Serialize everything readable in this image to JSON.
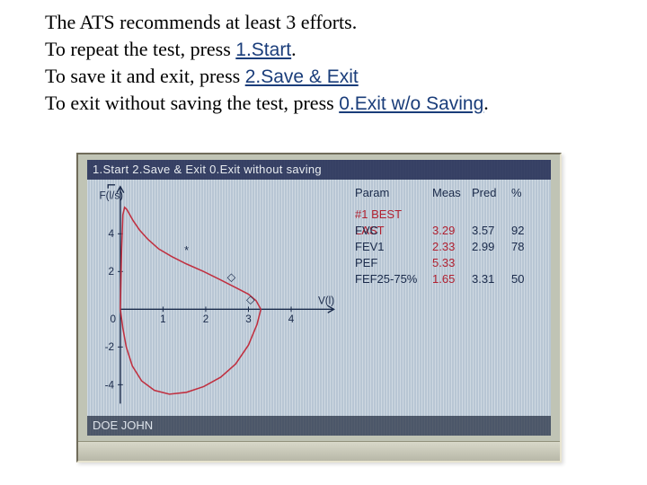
{
  "instructions": {
    "line1_pre": "The ATS recommends at least 3 efforts.",
    "line2_pre": "To repeat the test, press ",
    "line2_action": "1.Start",
    "line2_post": ".",
    "line3_pre": "To save it and exit, press ",
    "line3_action": "2.Save & Exit",
    "line4_pre": "To exit without saving the test, press ",
    "line4_action": "0.Exit w/o Saving",
    "line4_post": "."
  },
  "screen": {
    "title": "1.Start  2.Save & Exit  0.Exit without saving",
    "status": "DOE JOHN",
    "chart": {
      "type": "line",
      "xlabel": "V(l)",
      "ylabel": "F(l/s)",
      "xlim": [
        0,
        5
      ],
      "ylim": [
        -5,
        6.5
      ],
      "xticks": [
        0,
        1,
        2,
        3,
        4
      ],
      "yticks_pos": [
        2,
        4
      ],
      "yticks_neg": [
        -2,
        -4
      ],
      "axis_color": "#1a2a4a",
      "curve_color": "#c03040",
      "exp_curve": [
        [
          0.0,
          0.0
        ],
        [
          0.03,
          3.2
        ],
        [
          0.06,
          5.0
        ],
        [
          0.1,
          5.4
        ],
        [
          0.15,
          5.3
        ],
        [
          0.2,
          5.1
        ],
        [
          0.3,
          4.7
        ],
        [
          0.45,
          4.2
        ],
        [
          0.65,
          3.7
        ],
        [
          0.9,
          3.2
        ],
        [
          1.2,
          2.8
        ],
        [
          1.55,
          2.4
        ],
        [
          1.95,
          2.0
        ],
        [
          2.35,
          1.55
        ],
        [
          2.7,
          1.15
        ],
        [
          3.0,
          0.8
        ],
        [
          3.18,
          0.45
        ],
        [
          3.29,
          0.0
        ]
      ],
      "insp_curve": [
        [
          3.29,
          0.0
        ],
        [
          3.2,
          -0.8
        ],
        [
          3.0,
          -1.9
        ],
        [
          2.7,
          -2.9
        ],
        [
          2.35,
          -3.6
        ],
        [
          1.95,
          -4.1
        ],
        [
          1.55,
          -4.4
        ],
        [
          1.15,
          -4.5
        ],
        [
          0.8,
          -4.3
        ],
        [
          0.5,
          -3.8
        ],
        [
          0.28,
          -3.0
        ],
        [
          0.14,
          -2.0
        ],
        [
          0.06,
          -1.0
        ],
        [
          0.0,
          0.0
        ]
      ],
      "markers": [
        {
          "x": 1.55,
          "y": 3.1,
          "glyph": "*"
        },
        {
          "x": 2.6,
          "y": 1.7,
          "glyph": "◇"
        },
        {
          "x": 3.05,
          "y": 0.5,
          "glyph": "◇"
        }
      ]
    },
    "table": {
      "headers": [
        "Param",
        "Meas",
        "Pred",
        "%"
      ],
      "best_label": "#1 BEST LAST",
      "rows": [
        {
          "param": "FVC",
          "meas": "3.29",
          "pred": "3.57",
          "pct": "92"
        },
        {
          "param": "FEV1",
          "meas": "2.33",
          "pred": "2.99",
          "pct": "78"
        },
        {
          "param": "PEF",
          "meas": "5.33",
          "pred": "",
          "pct": ""
        },
        {
          "param": "FEF25-75%",
          "meas": "1.65",
          "pred": "3.31",
          "pct": "50"
        }
      ],
      "meas_color": "#b02030",
      "text_color": "#1a2a4a"
    }
  },
  "style": {
    "screen_bg": "#c4d0dc",
    "titlebar_bg": "rgba(30,40,80,0.85)",
    "titlebar_fg": "#e8ecf0",
    "status_bg": "rgba(30,40,60,0.7)"
  }
}
